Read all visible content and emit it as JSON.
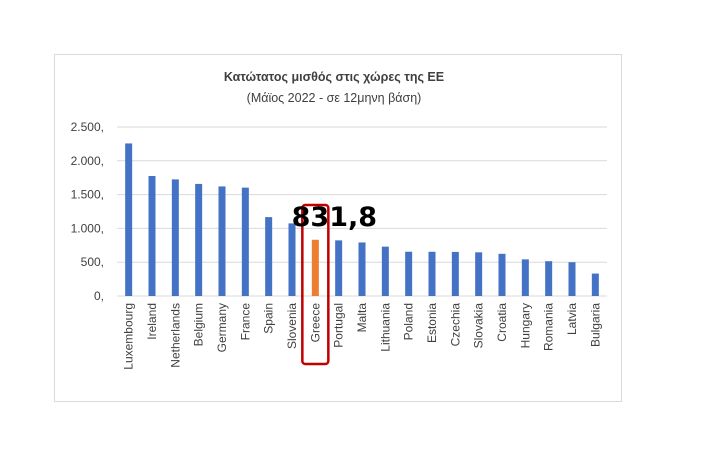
{
  "chart_data": {
    "type": "bar",
    "title": "Κατώτατος μισθός στις χώρες της ΕΕ",
    "subtitle": "(Μάϊος 2022 - σε 12μηνη βάση)",
    "categories": [
      "Luxembourg",
      "Ireland",
      "Netherlands",
      "Belgium",
      "Germany",
      "France",
      "Spain",
      "Slovenia",
      "Greece",
      "Portugal",
      "Malta",
      "Lithuania",
      "Poland",
      "Estonia",
      "Czechia",
      "Slovakia",
      "Croatia",
      "Hungary",
      "Romania",
      "Latvia",
      "Bulgaria"
    ],
    "values": [
      2257,
      1775,
      1725,
      1658,
      1621,
      1603,
      1167,
      1074,
      831.8,
      823,
      792,
      730,
      655,
      654,
      652,
      646,
      624,
      542,
      515,
      500,
      332
    ],
    "ylim": [
      0,
      2500
    ],
    "yticks": [
      0,
      500,
      1000,
      1500,
      2000,
      2500
    ],
    "ytick_labels": [
      "0,",
      "500,",
      "1.000,",
      "1.500,",
      "2.000,",
      "2.500,"
    ],
    "grid": true,
    "bar_color": "#4472c4",
    "highlight": {
      "category": "Greece",
      "color": "#ed7d31",
      "box_color": "#c00000",
      "label": "831,8"
    }
  }
}
